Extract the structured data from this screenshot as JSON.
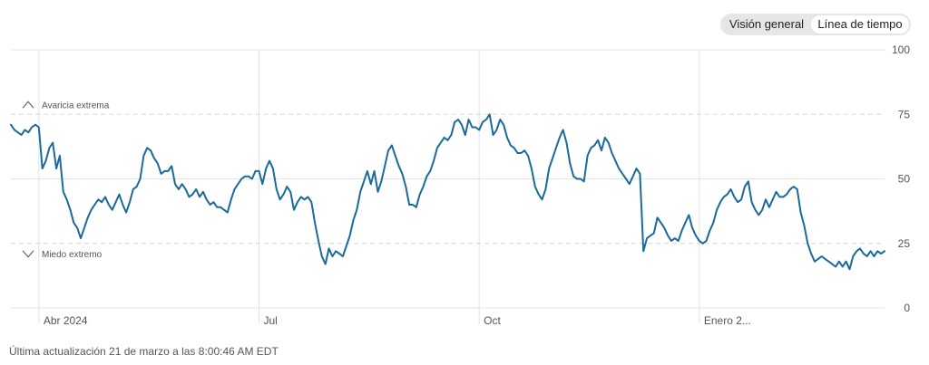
{
  "view_toggle": {
    "options": [
      "Visión general",
      "Línea de tiempo"
    ],
    "selected": "Línea de tiempo"
  },
  "footer": {
    "last_updated": "Última actualización 21 de marzo a las 8:00:46 AM EDT"
  },
  "colors": {
    "line": "#1a6a9a",
    "grid": "#e3e3e3",
    "band": "#d6d6d6",
    "axis_text": "#555555"
  },
  "chart_data": {
    "type": "line",
    "title": "",
    "xlabel": "",
    "ylabel": "",
    "ylim": [
      0,
      100
    ],
    "yticks": [
      0,
      25,
      50,
      75,
      100
    ],
    "x_tick_labels": [
      "Abr 2024",
      "Jul",
      "Oct",
      "Enero 2..."
    ],
    "x_tick_positions": [
      8,
      71,
      134,
      197
    ],
    "x_range": [
      0,
      250
    ],
    "zones": [
      {
        "label": "Avaricia extrema",
        "value": 75,
        "direction": "up"
      },
      {
        "label": "Miedo extremo",
        "value": 25,
        "direction": "down"
      }
    ],
    "series": [
      {
        "name": "",
        "x": [
          0,
          1,
          2,
          3,
          4,
          5,
          6,
          7,
          8,
          9,
          10,
          11,
          12,
          13,
          14,
          15,
          16,
          17,
          18,
          19,
          20,
          21,
          22,
          23,
          24,
          25,
          26,
          27,
          28,
          29,
          30,
          31,
          32,
          33,
          34,
          35,
          36,
          37,
          38,
          39,
          40,
          41,
          42,
          43,
          44,
          45,
          46,
          47,
          48,
          49,
          50,
          51,
          52,
          53,
          54,
          55,
          56,
          57,
          58,
          59,
          60,
          61,
          62,
          63,
          64,
          65,
          66,
          67,
          68,
          69,
          70,
          71,
          72,
          73,
          74,
          75,
          76,
          77,
          78,
          79,
          80,
          81,
          82,
          83,
          84,
          85,
          86,
          87,
          88,
          89,
          90,
          91,
          92,
          93,
          94,
          95,
          96,
          97,
          98,
          99,
          100,
          101,
          102,
          103,
          104,
          105,
          106,
          107,
          108,
          109,
          110,
          111,
          112,
          113,
          114,
          115,
          116,
          117,
          118,
          119,
          120,
          121,
          122,
          123,
          124,
          125,
          126,
          127,
          128,
          129,
          130,
          131,
          132,
          133,
          134,
          135,
          136,
          137,
          138,
          139,
          140,
          141,
          142,
          143,
          144,
          145,
          146,
          147,
          148,
          149,
          150,
          151,
          152,
          153,
          154,
          155,
          156,
          157,
          158,
          159,
          160,
          161,
          162,
          163,
          164,
          165,
          166,
          167,
          168,
          169,
          170,
          171,
          172,
          173,
          174,
          175,
          176,
          177,
          178,
          179,
          180,
          181,
          182,
          183,
          184,
          185,
          186,
          187,
          188,
          189,
          190,
          191,
          192,
          193,
          194,
          195,
          196,
          197,
          198,
          199,
          200,
          201,
          202,
          203,
          204,
          205,
          206,
          207,
          208,
          209,
          210,
          211,
          212,
          213,
          214,
          215,
          216,
          217,
          218,
          219,
          220,
          221,
          222,
          223,
          224,
          225,
          226,
          227,
          228,
          229,
          230,
          231,
          232,
          233,
          234,
          235,
          236,
          237,
          238,
          239,
          240,
          241,
          242,
          243,
          244,
          245,
          246,
          247,
          248,
          249,
          250
        ],
        "y": [
          71,
          69,
          68,
          67,
          69,
          68,
          70,
          71,
          70,
          54,
          57,
          62,
          64,
          54,
          59,
          45,
          42,
          38,
          33,
          31,
          27,
          31,
          35,
          38,
          40,
          42,
          41,
          43,
          40,
          38,
          41,
          44,
          40,
          37,
          41,
          46,
          47,
          50,
          59,
          62,
          61,
          58,
          56,
          52,
          53,
          53,
          55,
          48,
          46,
          48,
          46,
          43,
          44,
          46,
          43,
          45,
          42,
          40,
          41,
          39,
          39,
          38,
          37,
          42,
          46,
          48,
          50,
          51,
          51,
          50,
          53,
          53,
          48,
          54,
          57,
          54,
          46,
          42,
          44,
          47,
          45,
          38,
          41,
          43,
          42,
          43,
          41,
          33,
          26,
          20,
          17,
          23,
          20,
          22,
          21,
          20,
          24,
          28,
          34,
          38,
          45,
          49,
          53,
          48,
          53,
          45,
          49,
          55,
          61,
          63,
          59,
          55,
          52,
          47,
          40,
          40,
          39,
          44,
          47,
          51,
          53,
          57,
          62,
          64,
          66,
          65,
          67,
          72,
          73,
          71,
          67,
          73,
          70,
          70,
          69,
          72,
          73,
          75,
          67,
          69,
          73,
          71,
          66,
          63,
          62,
          60,
          60,
          61,
          59,
          54,
          47,
          44,
          42,
          46,
          54,
          58,
          62,
          66,
          69,
          64,
          56,
          51,
          50,
          50,
          49,
          59,
          62,
          63,
          65,
          61,
          66,
          64,
          60,
          57,
          54,
          52,
          50,
          48,
          51,
          54,
          52,
          22,
          27,
          28,
          29,
          35,
          33,
          31,
          28,
          26,
          27,
          26,
          30,
          33,
          36,
          31,
          28,
          26,
          25,
          26,
          30,
          33,
          38,
          41,
          43,
          44,
          46,
          43,
          41,
          42,
          47,
          49,
          41,
          38,
          36,
          38,
          42,
          39,
          42,
          45,
          43,
          43,
          44,
          46,
          47,
          46,
          37,
          32,
          25,
          21,
          18,
          19,
          20,
          19,
          18,
          17,
          16,
          18,
          16,
          18,
          15,
          20,
          22,
          23,
          21,
          20,
          22,
          20,
          22,
          21,
          22
        ]
      }
    ]
  }
}
